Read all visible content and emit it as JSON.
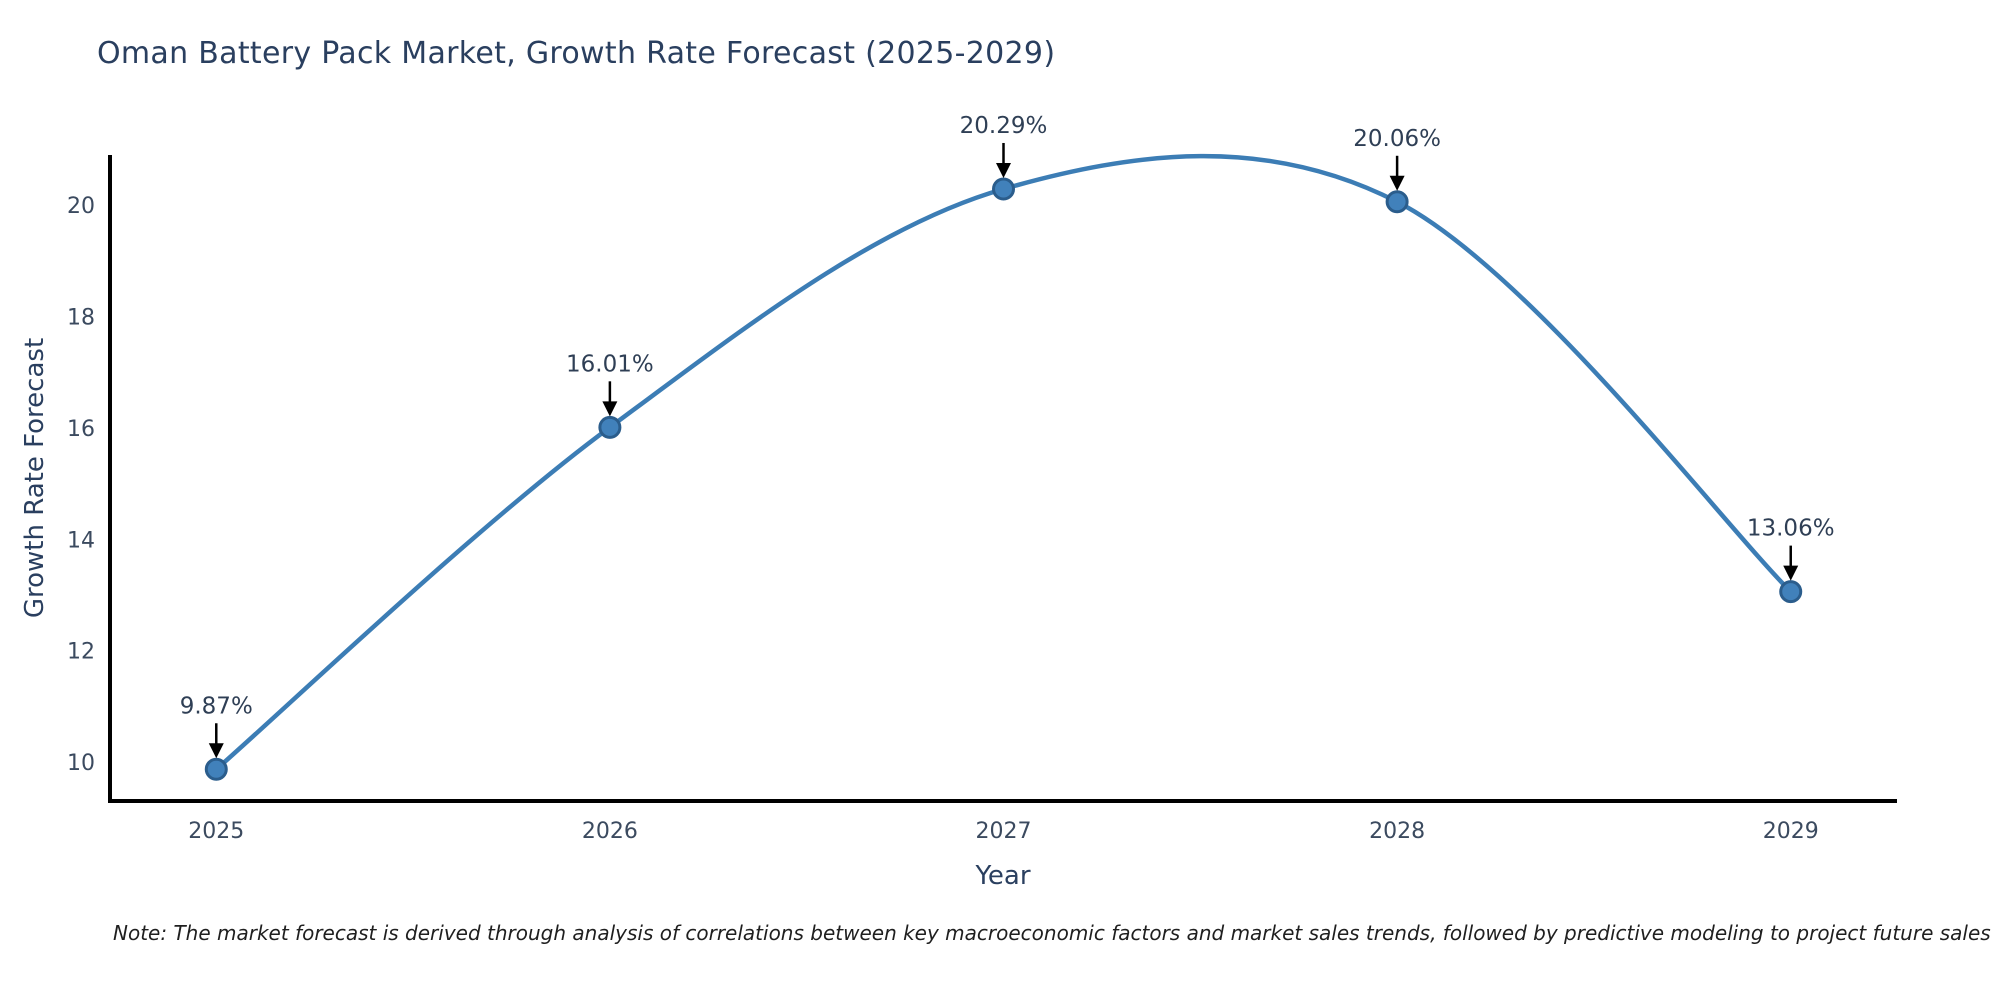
{
  "title": "Oman Battery Pack Market, Growth Rate Forecast (2025-2029)",
  "note": "Note: The market forecast is derived through analysis of correlations between key macroeconomic factors and market sales trends, followed by predictive modeling to project future sales",
  "chart_data": {
    "type": "line",
    "title": "Oman Battery Pack Market, Growth Rate Forecast (2025-2029)",
    "xlabel": "Year",
    "ylabel": "Growth Rate Forecast",
    "x": [
      2025,
      2026,
      2027,
      2028,
      2029
    ],
    "values": [
      9.87,
      16.01,
      20.29,
      20.06,
      13.06
    ],
    "point_labels": [
      "9.87%",
      "16.01%",
      "20.29%",
      "20.06%",
      "13.06%"
    ],
    "xticks": [
      2025,
      2026,
      2027,
      2028,
      2029
    ],
    "yticks": [
      10,
      12,
      14,
      16,
      18,
      20
    ],
    "xlim": [
      2024.73,
      2029.27
    ],
    "ylim": [
      9.3,
      20.9
    ],
    "grid": false,
    "legend_position": "none",
    "line_shape": "spline",
    "colors": {
      "line": "#3c7db5",
      "marker_fill": "#4181bb",
      "marker_edge": "#2b5d8c",
      "axis": "#000000",
      "title_text": "#2a3f5f",
      "tick_text": "#3b4a5f",
      "annotation_text": "#2f3f55",
      "annotation_arrow": "#000000"
    }
  }
}
